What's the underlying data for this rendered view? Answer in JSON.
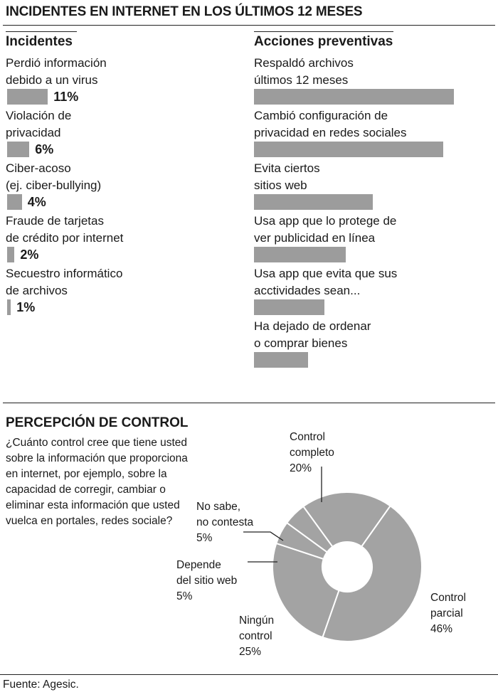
{
  "title": "INCIDENTES EN INTERNET EN LOS ÚLTIMOS 12 MESES",
  "incidents_header": "Incidentes",
  "actions_header": "Acciones preventivas",
  "perception_title": "PERCEPCIÓN DE CONTROL",
  "question": "¿Cuánto control cree que tiene usted sobre la información que proporciona en internet, por ejemplo, sobre la capacidad de corregir, cambiar o eliminar esta información que usted vuelca en portales, redes sociale?",
  "source": "Fuente: Agesic.",
  "colors": {
    "bar": "#9c9c9c",
    "slice": "#a3a3a3",
    "text": "#1a1a1a",
    "background": "#ffffff"
  },
  "chart_data": [
    {
      "type": "bar",
      "orientation": "horizontal",
      "title": "Incidentes",
      "categories": [
        [
          "Perdió información",
          "debido a un virus"
        ],
        [
          "Violación de",
          "privacidad"
        ],
        [
          "Ciber-acoso",
          "(ej. ciber-bullying)"
        ],
        [
          "Fraude de tarjetas",
          "de crédito por internet"
        ],
        [
          "Secuestro informático",
          "de archivos"
        ]
      ],
      "values": [
        11,
        6,
        4,
        2,
        1
      ],
      "value_labels": [
        "11%",
        "6%",
        "4%",
        "2%",
        "1%"
      ],
      "unit": "%"
    },
    {
      "type": "bar",
      "orientation": "horizontal",
      "title": "Acciones preventivas",
      "categories": [
        [
          "Respaldó archivos",
          "últimos 12 meses"
        ],
        [
          "Cambió configuración de",
          "privacidad en redes sociales"
        ],
        [
          "Evita ciertos",
          "sitios web"
        ],
        [
          "Usa app que lo protege de",
          "ver publicidad en línea"
        ],
        [
          "Usa app que evita que sus",
          "acctividades sean..."
        ],
        [
          "Ha dejado de ordenar",
          "o comprar bienes"
        ]
      ],
      "values": [
        37,
        35,
        22,
        17,
        13,
        10
      ],
      "value_labels": [],
      "unit": "%"
    },
    {
      "type": "pie",
      "variant": "donut",
      "title": "PERCEPCIÓN DE CONTROL",
      "slices": [
        {
          "label": [
            "Control",
            "completo"
          ],
          "value": 20,
          "display": "20%"
        },
        {
          "label": [
            "Control",
            "parcial"
          ],
          "value": 46,
          "display": "46%"
        },
        {
          "label": [
            "Ningún",
            "control"
          ],
          "value": 25,
          "display": "25%"
        },
        {
          "label": [
            "Depende",
            "del sitio web"
          ],
          "value": 5,
          "display": "5%"
        },
        {
          "label": [
            "No sabe,",
            "no contesta"
          ],
          "value": 5,
          "display": "5%"
        }
      ]
    }
  ]
}
